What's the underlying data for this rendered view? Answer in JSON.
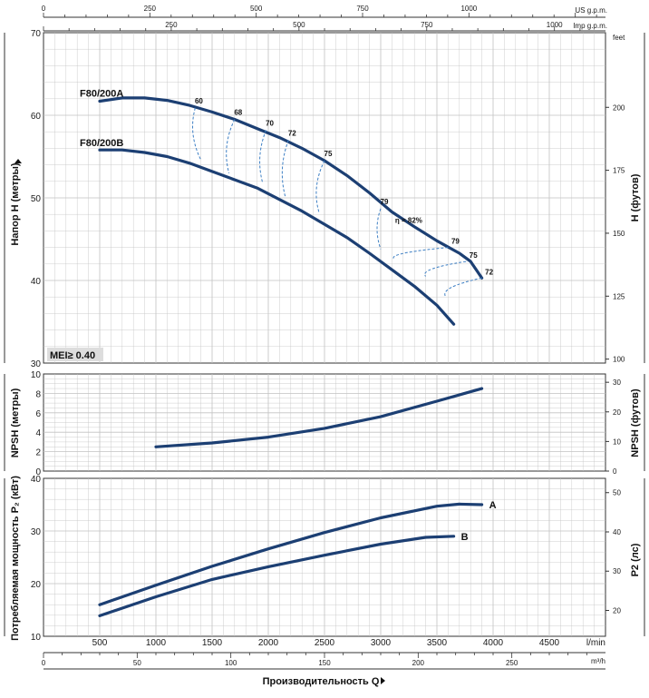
{
  "chart_data": [
    {
      "type": "line",
      "panel": "head",
      "ylabel": "Напор H (метры)",
      "ylabel_right": "H (футов)",
      "ylim": [
        30,
        70
      ],
      "yticks": [
        30,
        40,
        50,
        60,
        70
      ],
      "yticks_right": [
        100,
        125,
        150,
        175,
        200
      ],
      "ylabel_right_unit": "feet",
      "annotation": "MEI≥ 0.40",
      "series": [
        {
          "name": "F80/200A",
          "points": [
            [
              500,
              61.7
            ],
            [
              700,
              62.1
            ],
            [
              900,
              62.1
            ],
            [
              1100,
              61.8
            ],
            [
              1300,
              61.2
            ],
            [
              1500,
              60.4
            ],
            [
              1700,
              59.5
            ],
            [
              1900,
              58.4
            ],
            [
              2100,
              57.3
            ],
            [
              2300,
              56.0
            ],
            [
              2500,
              54.5
            ],
            [
              2700,
              52.7
            ],
            [
              2900,
              50.6
            ],
            [
              3100,
              48.3
            ],
            [
              3300,
              46.5
            ],
            [
              3500,
              44.8
            ],
            [
              3700,
              43.3
            ],
            [
              3800,
              42.3
            ],
            [
              3900,
              40.3
            ]
          ]
        },
        {
          "name": "F80/200B",
          "points": [
            [
              500,
              55.8
            ],
            [
              700,
              55.8
            ],
            [
              900,
              55.5
            ],
            [
              1100,
              55.0
            ],
            [
              1300,
              54.2
            ],
            [
              1500,
              53.2
            ],
            [
              1700,
              52.2
            ],
            [
              1900,
              51.2
            ],
            [
              2100,
              49.8
            ],
            [
              2300,
              48.4
            ],
            [
              2500,
              46.8
            ],
            [
              2700,
              45.2
            ],
            [
              2900,
              43.3
            ],
            [
              3100,
              41.3
            ],
            [
              3300,
              39.3
            ],
            [
              3500,
              37.0
            ],
            [
              3650,
              34.7
            ]
          ]
        }
      ],
      "efficiency": [
        {
          "label": "60",
          "top": [
            1350,
            60.9
          ],
          "bottom": [
            1400,
            54.6
          ]
        },
        {
          "label": "68",
          "top": [
            1700,
            59.5
          ],
          "bottom": [
            1650,
            53.0
          ]
        },
        {
          "label": "70",
          "top": [
            1980,
            58.2
          ],
          "bottom": [
            1950,
            51.8
          ]
        },
        {
          "label": "72",
          "top": [
            2180,
            57.0
          ],
          "bottom": [
            2150,
            50.2
          ]
        },
        {
          "label": "75",
          "top": [
            2500,
            54.5
          ],
          "bottom": [
            2450,
            48.3
          ]
        },
        {
          "label": "79",
          "top": [
            3000,
            48.7
          ],
          "bottom": [
            3000,
            43.8
          ]
        },
        {
          "label": "η = 82%",
          "top": [
            3080,
            47.3
          ],
          "bottom": [
            3080,
            47.3
          ]
        },
        {
          "label": "79",
          "top": [
            3600,
            44.0
          ],
          "bottom": [
            3120,
            42.6
          ]
        },
        {
          "label": "75",
          "top": [
            3760,
            42.3
          ],
          "bottom": [
            3400,
            40.5
          ]
        },
        {
          "label": "72",
          "top": [
            3900,
            40.3
          ],
          "bottom": [
            3580,
            38.0
          ]
        }
      ]
    },
    {
      "type": "line",
      "panel": "npsh",
      "ylabel": "NPSH (метры)",
      "ylabel_right": "NPSH (футов)",
      "ylim": [
        0,
        10
      ],
      "yticks": [
        0,
        2,
        4,
        6,
        8,
        10
      ],
      "yticks_right": [
        0,
        10,
        20,
        30
      ],
      "series": [
        {
          "name": "NPSH",
          "points": [
            [
              1000,
              2.5
            ],
            [
              1500,
              2.9
            ],
            [
              2000,
              3.5
            ],
            [
              2500,
              4.4
            ],
            [
              3000,
              5.6
            ],
            [
              3500,
              7.2
            ],
            [
              3900,
              8.5
            ]
          ]
        }
      ]
    },
    {
      "type": "line",
      "panel": "power",
      "ylabel": "Потребляемая мощность P₂ (кВт)",
      "ylabel_right": "P2 (лс)",
      "ylim": [
        10,
        40
      ],
      "yticks": [
        10,
        20,
        30,
        40
      ],
      "yticks_right": [
        20,
        30,
        40,
        50
      ],
      "series": [
        {
          "name": "A",
          "points": [
            [
              500,
              16.0
            ],
            [
              1000,
              19.7
            ],
            [
              1500,
              23.3
            ],
            [
              2000,
              26.6
            ],
            [
              2500,
              29.7
            ],
            [
              3000,
              32.5
            ],
            [
              3500,
              34.7
            ],
            [
              3700,
              35.1
            ],
            [
              3900,
              35.0
            ]
          ]
        },
        {
          "name": "B",
          "points": [
            [
              500,
              13.9
            ],
            [
              1000,
              17.5
            ],
            [
              1500,
              20.8
            ],
            [
              2000,
              23.2
            ],
            [
              2500,
              25.4
            ],
            [
              3000,
              27.5
            ],
            [
              3400,
              28.8
            ],
            [
              3650,
              29.0
            ]
          ]
        }
      ]
    }
  ],
  "axes": {
    "x_lmin": {
      "unit": "l/min",
      "ticks": [
        500,
        1000,
        1500,
        2000,
        2500,
        3000,
        3500,
        4000,
        4500
      ]
    },
    "x_m3h": {
      "unit": "m³/h",
      "ticks": [
        0,
        50,
        100,
        150,
        200,
        250
      ]
    },
    "x_us": {
      "unit": "US g.p.m.",
      "ticks": [
        0,
        250,
        500,
        750,
        1000
      ]
    },
    "x_imp": {
      "unit": "Imp g.p.m.",
      "ticks": [
        250,
        500,
        750,
        1000
      ]
    },
    "xlabel": "Производительность Q"
  },
  "colors": {
    "curve": "#1c3f73",
    "dashed": "#3d7fc4",
    "grid": "#c2c2c2",
    "frame": "#333333",
    "mei_bg": "#dddddd"
  }
}
